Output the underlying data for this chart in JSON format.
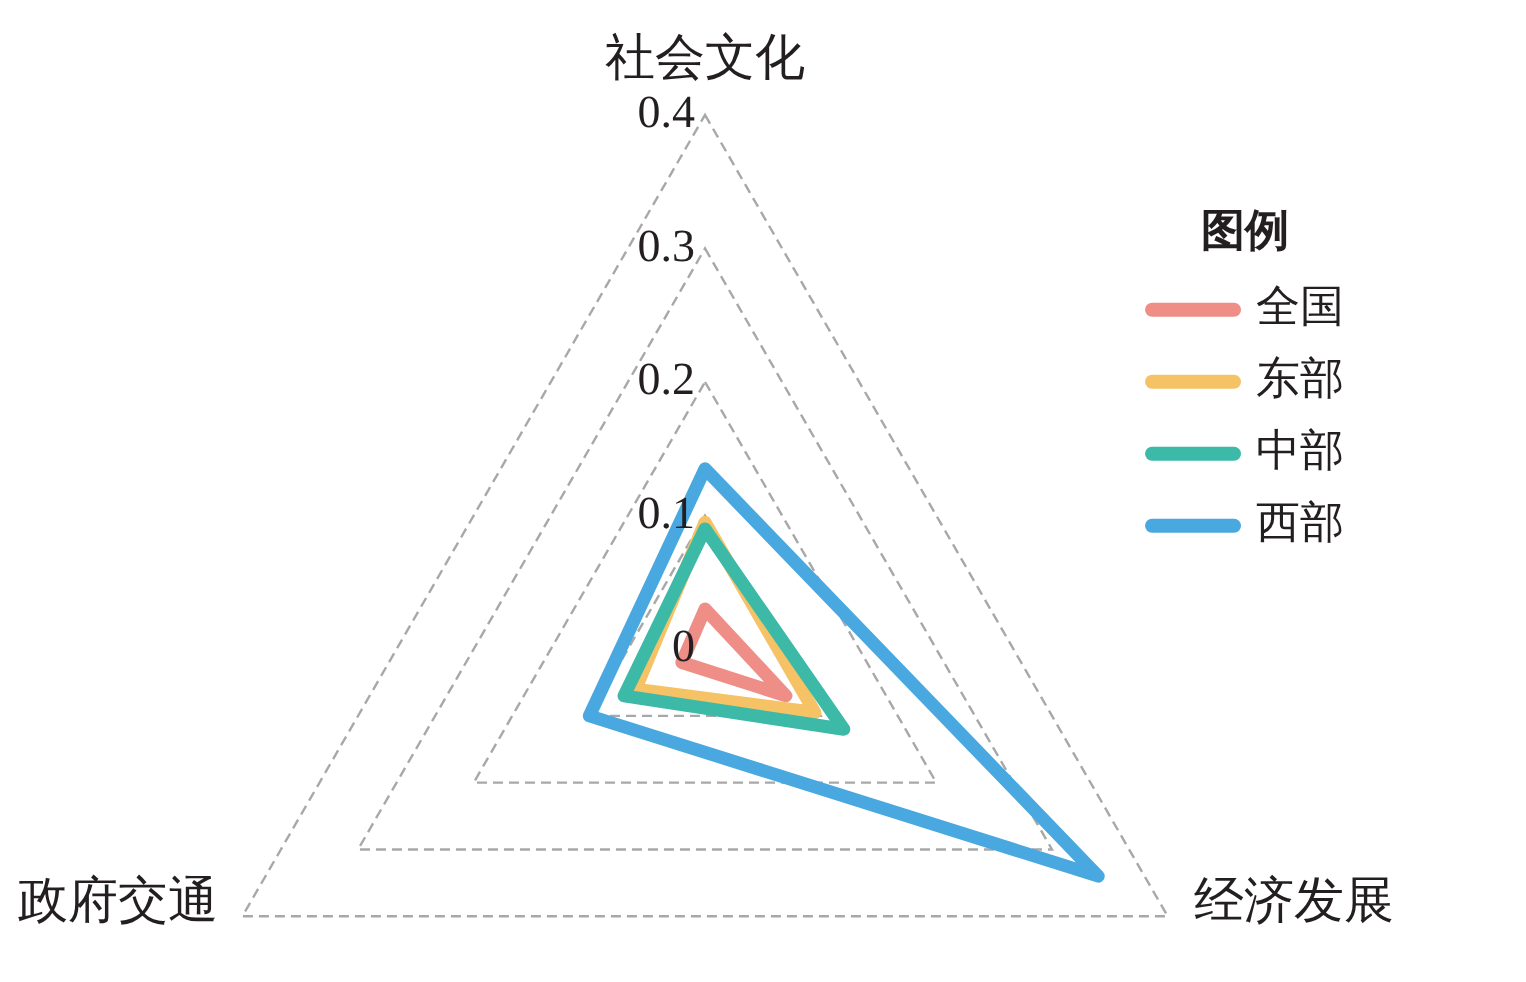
{
  "chart_data": {
    "type": "radar",
    "categories": [
      "社会文化",
      "经济发展",
      "政府交通"
    ],
    "series": [
      {
        "name": "全国",
        "color": "#ee8e86",
        "values": [
          0.03,
          0.07,
          0.02
        ]
      },
      {
        "name": "东部",
        "color": "#f6c266",
        "values": [
          0.095,
          0.095,
          0.06
        ]
      },
      {
        "name": "中部",
        "color": "#3db9a7",
        "values": [
          0.09,
          0.12,
          0.07
        ]
      },
      {
        "name": "西部",
        "color": "#4aa8e0",
        "values": [
          0.135,
          0.34,
          0.1
        ]
      }
    ],
    "ylim": [
      0,
      0.4
    ],
    "yticks": [
      0,
      0.1,
      0.2,
      0.3,
      0.4
    ],
    "grid": true,
    "legend": "right",
    "legend_title": "图例",
    "marker": "none"
  }
}
